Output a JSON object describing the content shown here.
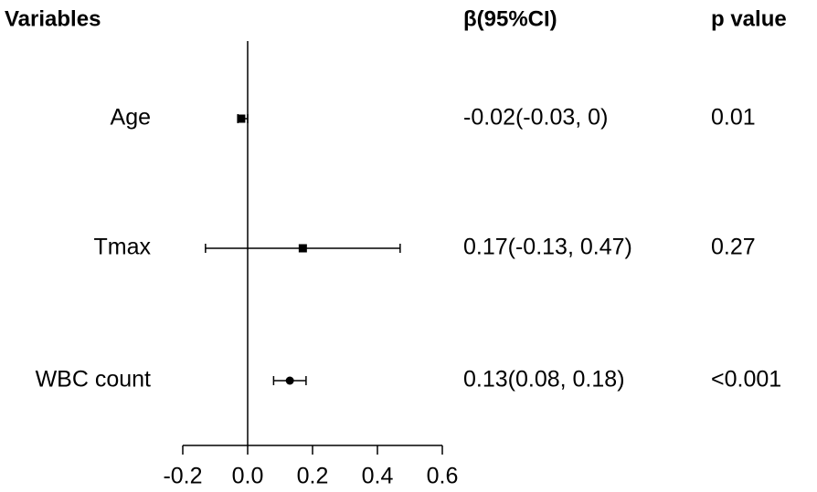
{
  "chart_data": {
    "type": "forest",
    "column_headers": [
      "Variables",
      "β(95%CI)",
      "p value"
    ],
    "categories": [
      "Age",
      "Tmax",
      "WBC count"
    ],
    "estimates": [
      -0.02,
      0.17,
      0.13
    ],
    "lower": [
      -0.03,
      -0.13,
      0.08
    ],
    "upper": [
      0,
      0.47,
      0.18
    ],
    "value_labels": [
      "-0.02(-0.03, 0)",
      "0.17(-0.13, 0.47)",
      "0.13(0.08, 0.18)"
    ],
    "p_values": [
      "0.01",
      "0.27",
      "<0.001"
    ],
    "markers": [
      "square",
      "square",
      "circle"
    ],
    "color": "#000000",
    "xlim": [
      -0.2,
      0.6
    ],
    "xticks": [
      -0.2,
      {
        "value": 0,
        "label": "0.0"
      },
      0.2,
      0.4,
      0.6
    ],
    "reference_line": 0
  }
}
